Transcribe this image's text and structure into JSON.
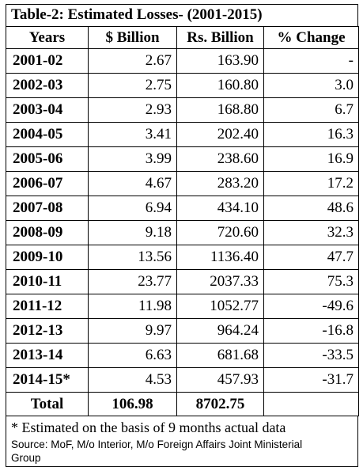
{
  "table": {
    "caption_prefix": "Table-2",
    "caption_rest": ": Estimated Losses- (2001-2015)",
    "headers": [
      "Years",
      "$ Billion",
      "Rs. Billion",
      "% Change"
    ],
    "rows": [
      [
        "2001-02",
        "2.67",
        "163.90",
        "-"
      ],
      [
        "2002-03",
        "2.75",
        "160.80",
        "3.0"
      ],
      [
        "2003-04",
        "2.93",
        "168.80",
        "6.7"
      ],
      [
        "2004-05",
        "3.41",
        "202.40",
        "16.3"
      ],
      [
        "2005-06",
        "3.99",
        "238.60",
        "16.9"
      ],
      [
        "2006-07",
        "4.67",
        "283.20",
        "17.2"
      ],
      [
        "2007-08",
        "6.94",
        "434.10",
        "48.6"
      ],
      [
        "2008-09",
        "9.18",
        "720.60",
        "32.3"
      ],
      [
        "2009-10",
        "13.56",
        "1136.40",
        "47.7"
      ],
      [
        "2010-11",
        "23.77",
        "2037.33",
        "75.3"
      ],
      [
        "2011-12",
        "11.98",
        "1052.77",
        "-49.6"
      ],
      [
        "2012-13",
        "9.97",
        "964.24",
        "-16.8"
      ],
      [
        "2013-14",
        "6.63",
        "681.68",
        "-33.5"
      ],
      [
        "2014-15*",
        "4.53",
        "457.93",
        "-31.7"
      ]
    ],
    "total": [
      "Total",
      "106.98",
      "8702.75",
      ""
    ]
  },
  "footnote": "* Estimated on the basis of 9 months actual data",
  "source_line1": "Source: MoF, M/o Interior, M/o Foreign Affairs Joint Ministerial",
  "source_line2": "Group"
}
